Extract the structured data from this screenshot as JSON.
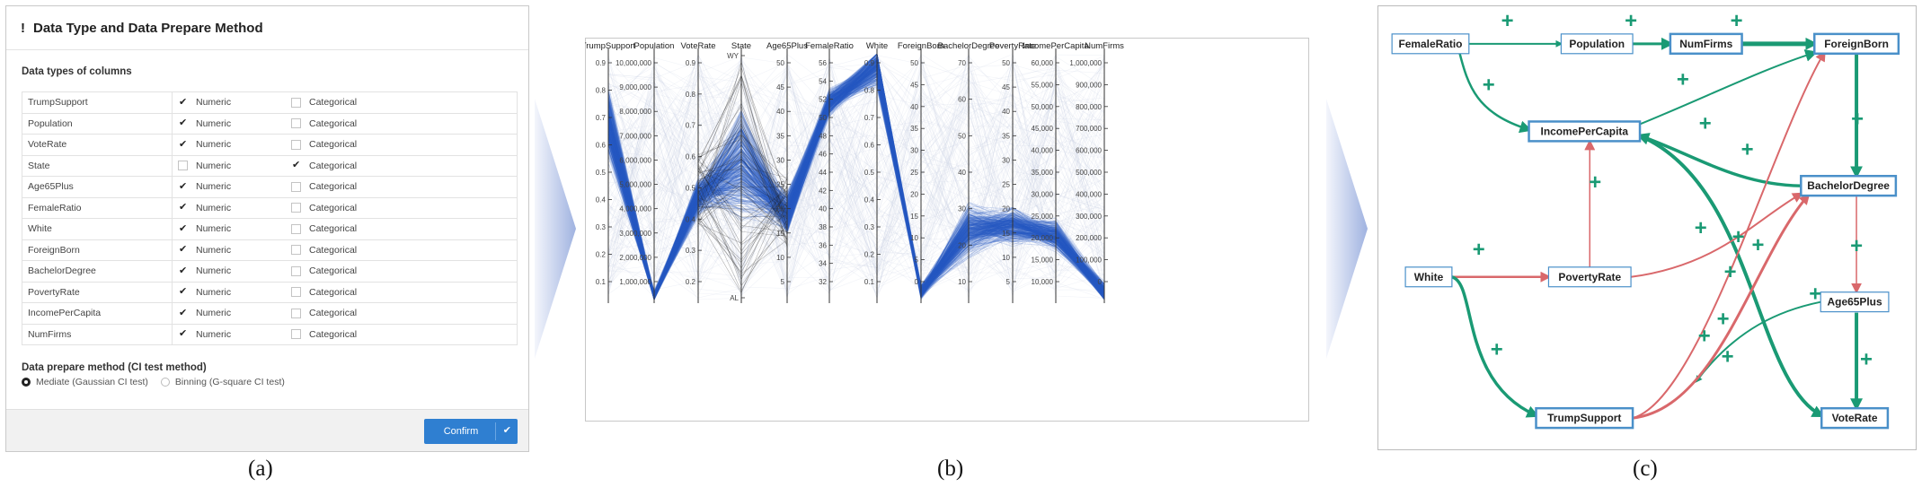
{
  "panel_a": {
    "dialog_title": "Data Type and Data Prepare Method",
    "columns_label": "Data types of columns",
    "numeric_label": "Numeric",
    "categorical_label": "Categorical",
    "rows": [
      {
        "name": "TrumpSupport",
        "type": "Numeric"
      },
      {
        "name": "Population",
        "type": "Numeric"
      },
      {
        "name": "VoteRate",
        "type": "Numeric"
      },
      {
        "name": "State",
        "type": "Categorical"
      },
      {
        "name": "Age65Plus",
        "type": "Numeric"
      },
      {
        "name": "FemaleRatio",
        "type": "Numeric"
      },
      {
        "name": "White",
        "type": "Numeric"
      },
      {
        "name": "ForeignBorn",
        "type": "Numeric"
      },
      {
        "name": "BachelorDegree",
        "type": "Numeric"
      },
      {
        "name": "PovertyRate",
        "type": "Numeric"
      },
      {
        "name": "IncomePerCapita",
        "type": "Numeric"
      },
      {
        "name": "NumFirms",
        "type": "Numeric"
      }
    ],
    "prepare_label": "Data prepare method (CI test method)",
    "option_mediate": "Mediate (Gaussian CI test)",
    "option_binning": "Binning (G-square CI test)",
    "selected_option": "Mediate (Gaussian CI test)",
    "confirm_label": "Confirm"
  },
  "panel_b": {
    "axes": [
      {
        "name": "TrumpSupport",
        "ticks": [
          "0.9",
          "0.8",
          "0.7",
          "0.6",
          "0.5",
          "0.4",
          "0.3",
          "0.2",
          "0.1"
        ]
      },
      {
        "name": "Population",
        "ticks": [
          "10,000,000",
          "9,000,000",
          "8,000,000",
          "7,000,000",
          "6,000,000",
          "5,000,000",
          "4,000,000",
          "3,000,000",
          "2,000,000",
          "1,000,000"
        ]
      },
      {
        "name": "VoteRate",
        "ticks": [
          "0.9",
          "0.8",
          "0.7",
          "0.6",
          "0.5",
          "0.4",
          "0.3",
          "0.2"
        ]
      },
      {
        "name": "State",
        "ticks": [
          "WY",
          "AL"
        ]
      },
      {
        "name": "Age65Plus",
        "ticks": [
          "50",
          "45",
          "40",
          "35",
          "30",
          "25",
          "20",
          "15",
          "10",
          "5"
        ]
      },
      {
        "name": "FemaleRatio",
        "ticks": [
          "56",
          "54",
          "52",
          "50",
          "48",
          "46",
          "44",
          "42",
          "40",
          "38",
          "36",
          "34",
          "32"
        ]
      },
      {
        "name": "White",
        "ticks": [
          "0.9",
          "0.8",
          "0.7",
          "0.6",
          "0.5",
          "0.4",
          "0.3",
          "0.2",
          "0.1"
        ]
      },
      {
        "name": "ForeignBorn",
        "ticks": [
          "50",
          "45",
          "40",
          "35",
          "30",
          "25",
          "20",
          "15",
          "10",
          "5",
          "0"
        ]
      },
      {
        "name": "BachelorDegree",
        "ticks": [
          "70",
          "60",
          "50",
          "40",
          "30",
          "20",
          "10"
        ]
      },
      {
        "name": "PovertyRate",
        "ticks": [
          "50",
          "45",
          "40",
          "35",
          "30",
          "25",
          "20",
          "15",
          "10",
          "5"
        ]
      },
      {
        "name": "IncomePerCapita",
        "ticks": [
          "60,000",
          "55,000",
          "50,000",
          "45,000",
          "40,000",
          "35,000",
          "30,000",
          "25,000",
          "20,000",
          "15,000",
          "10,000"
        ]
      },
      {
        "name": "NumFirms",
        "ticks": [
          "1,000,000",
          "900,000",
          "800,000",
          "700,000",
          "600,000",
          "500,000",
          "400,000",
          "300,000",
          "200,000",
          "100,000",
          "0"
        ]
      }
    ],
    "line_color": "#2b5cc4"
  },
  "panel_c": {
    "nodes": [
      {
        "id": "FemaleRatio",
        "label": "FemaleRatio"
      },
      {
        "id": "Population",
        "label": "Population"
      },
      {
        "id": "NumFirms",
        "label": "NumFirms"
      },
      {
        "id": "ForeignBorn",
        "label": "ForeignBorn"
      },
      {
        "id": "IncomePerCapita",
        "label": "IncomePerCapita"
      },
      {
        "id": "BachelorDegree",
        "label": "BachelorDegree"
      },
      {
        "id": "White",
        "label": "White"
      },
      {
        "id": "PovertyRate",
        "label": "PovertyRate"
      },
      {
        "id": "Age65Plus",
        "label": "Age65Plus"
      },
      {
        "id": "TrumpSupport",
        "label": "TrumpSupport"
      },
      {
        "id": "VoteRate",
        "label": "VoteRate"
      }
    ],
    "edges": [
      {
        "from": "FemaleRatio",
        "to": "Population",
        "sign": "+"
      },
      {
        "from": "Population",
        "to": "NumFirms",
        "sign": "+"
      },
      {
        "from": "NumFirms",
        "to": "ForeignBorn",
        "sign": "+"
      },
      {
        "from": "FemaleRatio",
        "to": "IncomePerCapita",
        "sign": "+"
      },
      {
        "from": "ForeignBorn",
        "to": "BachelorDegree",
        "sign": "+"
      },
      {
        "from": "IncomePerCapita",
        "to": "ForeignBorn",
        "sign": "+"
      },
      {
        "from": "BachelorDegree",
        "to": "IncomePerCapita",
        "sign": "+"
      },
      {
        "from": "PovertyRate",
        "to": "IncomePerCapita",
        "sign": "+"
      },
      {
        "from": "White",
        "to": "PovertyRate",
        "sign": "+"
      },
      {
        "from": "White",
        "to": "TrumpSupport",
        "sign": "+"
      },
      {
        "from": "BachelorDegree",
        "to": "Age65Plus",
        "sign": "+"
      },
      {
        "from": "Age65Plus",
        "to": "VoteRate",
        "sign": "+"
      },
      {
        "from": "IncomePerCapita",
        "to": "VoteRate",
        "sign": "+"
      },
      {
        "from": "Age65Plus",
        "to": "TrumpSupport",
        "sign": "+"
      },
      {
        "from": "PovertyRate",
        "to": "BachelorDegree",
        "sign": "-"
      },
      {
        "from": "TrumpSupport",
        "to": "BachelorDegree",
        "sign": "-"
      },
      {
        "from": "TrumpSupport",
        "to": "ForeignBorn",
        "sign": "-"
      }
    ],
    "positive_color": "#1a9a74",
    "negative_color": "#d9686b",
    "node_border_color": "#4a90c9"
  },
  "captions": [
    "(a)",
    "(b)",
    "(c)"
  ]
}
